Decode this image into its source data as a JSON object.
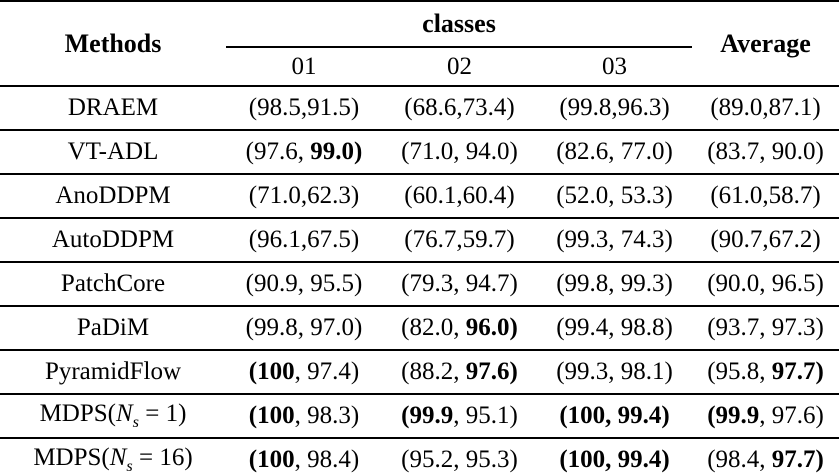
{
  "page": {
    "background": "#ffffff"
  },
  "colors": {
    "text": "#000000",
    "rule": "#000000",
    "background": "#ffffff"
  },
  "table": {
    "header": {
      "methods_label": "Methods",
      "classes_label": "classes",
      "class_columns": [
        "01",
        "02",
        "03"
      ],
      "average_label": "Average"
    },
    "rows": [
      {
        "method": [
          {
            "t": "DRAEM"
          }
        ],
        "cells": [
          [
            {
              "t": "(98.5,91.5)"
            }
          ],
          [
            {
              "t": "(68.6,73.4)"
            }
          ],
          [
            {
              "t": "(99.8,96.3)"
            }
          ],
          [
            {
              "t": "(89.0,87.1)"
            }
          ]
        ]
      },
      {
        "method": [
          {
            "t": "VT-ADL"
          }
        ],
        "cells": [
          [
            {
              "t": "(97.6, "
            },
            {
              "t": "99.0)",
              "b": true
            }
          ],
          [
            {
              "t": "(71.0, 94.0)"
            }
          ],
          [
            {
              "t": "(82.6, 77.0)"
            }
          ],
          [
            {
              "t": "(83.7, 90.0)"
            }
          ]
        ]
      },
      {
        "method": [
          {
            "t": "AnoDDPM"
          }
        ],
        "cells": [
          [
            {
              "t": "(71.0,62.3)"
            }
          ],
          [
            {
              "t": "(60.1,60.4)"
            }
          ],
          [
            {
              "t": "(52.0, 53.3)"
            }
          ],
          [
            {
              "t": "(61.0,58.7)"
            }
          ]
        ]
      },
      {
        "method": [
          {
            "t": "AutoDDPM"
          }
        ],
        "cells": [
          [
            {
              "t": "(96.1,67.5)"
            }
          ],
          [
            {
              "t": "(76.7,59.7)"
            }
          ],
          [
            {
              "t": "(99.3, 74.3)"
            }
          ],
          [
            {
              "t": "(90.7,67.2)"
            }
          ]
        ]
      },
      {
        "method": [
          {
            "t": "PatchCore"
          }
        ],
        "cells": [
          [
            {
              "t": "(90.9, 95.5)"
            }
          ],
          [
            {
              "t": "(79.3, 94.7)"
            }
          ],
          [
            {
              "t": "(99.8, 99.3)"
            }
          ],
          [
            {
              "t": "(90.0, 96.5)"
            }
          ]
        ]
      },
      {
        "method": [
          {
            "t": "PaDiM"
          }
        ],
        "cells": [
          [
            {
              "t": "(99.8, 97.0)"
            }
          ],
          [
            {
              "t": "(82.0, "
            },
            {
              "t": "96.0)",
              "b": true
            }
          ],
          [
            {
              "t": "(99.4, 98.8)"
            }
          ],
          [
            {
              "t": "(93.7, 97.3)"
            }
          ]
        ]
      },
      {
        "method": [
          {
            "t": "PyramidFlow"
          }
        ],
        "cells": [
          [
            {
              "t": "(100",
              "b": true
            },
            {
              "t": ", 97.4)"
            }
          ],
          [
            {
              "t": "(88.2, "
            },
            {
              "t": "97.6)",
              "b": true
            }
          ],
          [
            {
              "t": "(99.3, 98.1)"
            }
          ],
          [
            {
              "t": "(95.8, "
            },
            {
              "t": "97.7)",
              "b": true
            }
          ]
        ]
      },
      {
        "method": [
          {
            "t": "MDPS("
          },
          {
            "t": "N",
            "i": true
          },
          {
            "t": "s",
            "i": true,
            "sub": true
          },
          {
            "t": " = 1)"
          }
        ],
        "cells": [
          [
            {
              "t": "(100",
              "b": true
            },
            {
              "t": ", 98.3)"
            }
          ],
          [
            {
              "t": "(99.9",
              "b": true
            },
            {
              "t": ", 95.1)"
            }
          ],
          [
            {
              "t": "(100, 99.4)",
              "b": true
            }
          ],
          [
            {
              "t": "(99.9",
              "b": true
            },
            {
              "t": ", 97.6)"
            }
          ]
        ]
      },
      {
        "method": [
          {
            "t": "MDPS("
          },
          {
            "t": "N",
            "i": true
          },
          {
            "t": "s",
            "i": true,
            "sub": true
          },
          {
            "t": " = 16)"
          }
        ],
        "cells": [
          [
            {
              "t": "(100",
              "b": true
            },
            {
              "t": ", 98.4)"
            }
          ],
          [
            {
              "t": "(95.2, 95.3)"
            }
          ],
          [
            {
              "t": "(100, 99.4)",
              "b": true
            }
          ],
          [
            {
              "t": "(98.4, "
            },
            {
              "t": "97.7)",
              "b": true
            }
          ]
        ]
      }
    ]
  }
}
